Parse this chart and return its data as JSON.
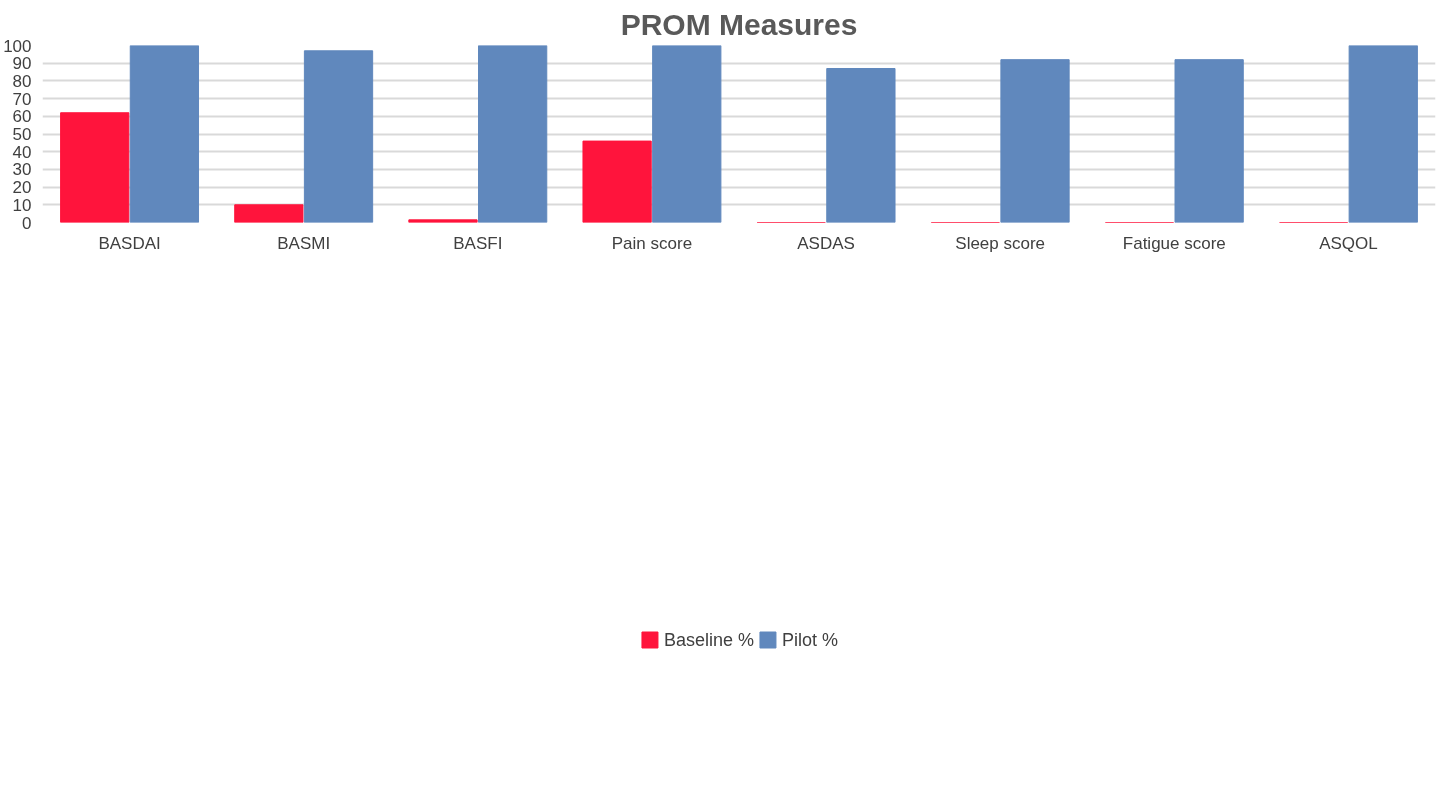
{
  "chart_data": {
    "type": "bar",
    "title": "PROM Measures",
    "categories": [
      "BASDAI",
      "BASMI",
      "BASFI",
      "Pain score",
      "ASDAS",
      "Sleep score",
      "Fatigue score",
      "ASQOL"
    ],
    "series": [
      {
        "name": "Baseline %",
        "color": "#ff143c",
        "values": [
          62,
          10,
          1.5,
          46,
          0,
          0,
          0,
          0
        ]
      },
      {
        "name": "Pilot %",
        "color": "#6088bd",
        "values": [
          100,
          97,
          100,
          100,
          87,
          92,
          92,
          100
        ]
      }
    ],
    "ylim": [
      0,
      100
    ],
    "yticks": [
      0,
      10,
      20,
      30,
      40,
      50,
      60,
      70,
      80,
      90,
      100
    ],
    "grid": "y",
    "legend": "bottom"
  }
}
